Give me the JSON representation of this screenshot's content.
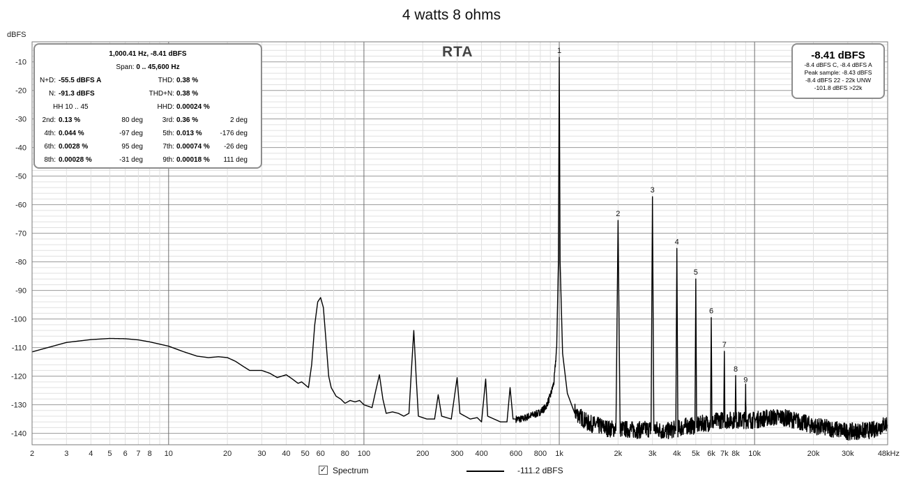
{
  "chart_data": {
    "type": "line",
    "title": "4 watts 8 ohms",
    "ylabel": "dBFS",
    "xlabel": "",
    "x_scale": "log",
    "xlim": [
      2,
      48000
    ],
    "ylim": [
      -144,
      -3
    ],
    "grid": true,
    "y_ticks": [
      -10,
      -20,
      -30,
      -40,
      -50,
      -60,
      -70,
      -80,
      -90,
      -100,
      -110,
      -120,
      -130,
      -140
    ],
    "x_ticks": [
      {
        "v": 2,
        "label": "2"
      },
      {
        "v": 3,
        "label": "3"
      },
      {
        "v": 4,
        "label": "4"
      },
      {
        "v": 5,
        "label": "5"
      },
      {
        "v": 6,
        "label": "6"
      },
      {
        "v": 7,
        "label": "7"
      },
      {
        "v": 8,
        "label": "8"
      },
      {
        "v": 10,
        "label": "10"
      },
      {
        "v": 20,
        "label": "20"
      },
      {
        "v": 30,
        "label": "30"
      },
      {
        "v": 40,
        "label": "40"
      },
      {
        "v": 50,
        "label": "50"
      },
      {
        "v": 60,
        "label": "60"
      },
      {
        "v": 80,
        "label": "80"
      },
      {
        "v": 100,
        "label": "100"
      },
      {
        "v": 200,
        "label": "200"
      },
      {
        "v": 300,
        "label": "300"
      },
      {
        "v": 400,
        "label": "400"
      },
      {
        "v": 600,
        "label": "600"
      },
      {
        "v": 800,
        "label": "800"
      },
      {
        "v": 1000,
        "label": "1k"
      },
      {
        "v": 2000,
        "label": "2k"
      },
      {
        "v": 3000,
        "label": "3k"
      },
      {
        "v": 4000,
        "label": "4k"
      },
      {
        "v": 5000,
        "label": "5k"
      },
      {
        "v": 6000,
        "label": "6k"
      },
      {
        "v": 7000,
        "label": "7k"
      },
      {
        "v": 8000,
        "label": "8k"
      },
      {
        "v": 10000,
        "label": "10k"
      },
      {
        "v": 20000,
        "label": "20k"
      },
      {
        "v": 30000,
        "label": "30k"
      },
      {
        "v": 48000,
        "label": "48kHz"
      }
    ],
    "series": [
      {
        "name": "Spectrum",
        "color": "#000000",
        "points": [
          [
            2,
            -111.5
          ],
          [
            3,
            -108.2
          ],
          [
            4,
            -107.2
          ],
          [
            5,
            -106.8
          ],
          [
            6,
            -106.9
          ],
          [
            7,
            -107.3
          ],
          [
            8,
            -108
          ],
          [
            10,
            -109.5
          ],
          [
            12,
            -111.5
          ],
          [
            14,
            -113
          ],
          [
            16,
            -113.5
          ],
          [
            18,
            -113.2
          ],
          [
            20,
            -113.5
          ],
          [
            22,
            -114.8
          ],
          [
            24,
            -116.5
          ],
          [
            26,
            -118
          ],
          [
            30,
            -118
          ],
          [
            33,
            -119
          ],
          [
            36,
            -120.5
          ],
          [
            40,
            -119.5
          ],
          [
            43,
            -121
          ],
          [
            46,
            -122.5
          ],
          [
            48,
            -122
          ],
          [
            50,
            -123
          ],
          [
            52,
            -124
          ],
          [
            54,
            -116
          ],
          [
            56,
            -102
          ],
          [
            58,
            -94
          ],
          [
            60,
            -92.5
          ],
          [
            62,
            -96
          ],
          [
            64,
            -108
          ],
          [
            66,
            -120
          ],
          [
            68,
            -124
          ],
          [
            72,
            -127
          ],
          [
            76,
            -128
          ],
          [
            80,
            -129.5
          ],
          [
            85,
            -128.5
          ],
          [
            90,
            -129
          ],
          [
            95,
            -128.5
          ],
          [
            100,
            -130
          ],
          [
            110,
            -131
          ],
          [
            115,
            -125
          ],
          [
            120,
            -119.5
          ],
          [
            125,
            -128
          ],
          [
            130,
            -133
          ],
          [
            140,
            -132.5
          ],
          [
            150,
            -133
          ],
          [
            160,
            -134
          ],
          [
            170,
            -133
          ],
          [
            175,
            -118
          ],
          [
            180,
            -104
          ],
          [
            185,
            -120
          ],
          [
            190,
            -134
          ],
          [
            210,
            -135
          ],
          [
            230,
            -135
          ],
          [
            240,
            -126.5
          ],
          [
            250,
            -134
          ],
          [
            280,
            -135
          ],
          [
            300,
            -120.5
          ],
          [
            310,
            -133
          ],
          [
            350,
            -135
          ],
          [
            380,
            -134.5
          ],
          [
            400,
            -136
          ],
          [
            420,
            -121
          ],
          [
            430,
            -134
          ],
          [
            500,
            -136
          ],
          [
            540,
            -136
          ],
          [
            560,
            -124
          ],
          [
            580,
            -135
          ],
          [
            650,
            -135
          ],
          [
            700,
            -134
          ],
          [
            780,
            -133
          ],
          [
            850,
            -131
          ],
          [
            900,
            -127
          ],
          [
            940,
            -122
          ],
          [
            970,
            -110
          ],
          [
            990,
            -80
          ],
          [
            1000,
            -8.41
          ],
          [
            1010,
            -80
          ],
          [
            1040,
            -112
          ],
          [
            1100,
            -126
          ],
          [
            1200,
            -133
          ],
          [
            1400,
            -137
          ],
          [
            1600,
            -138
          ],
          [
            1800,
            -139
          ],
          [
            1950,
            -139
          ],
          [
            2000,
            -65.5
          ],
          [
            2050,
            -139
          ],
          [
            2500,
            -139.5
          ],
          [
            2950,
            -139
          ],
          [
            3000,
            -57.2
          ],
          [
            3050,
            -139
          ],
          [
            3500,
            -140
          ],
          [
            3950,
            -139
          ],
          [
            4000,
            -75.3
          ],
          [
            4050,
            -139
          ],
          [
            4500,
            -138
          ],
          [
            4950,
            -138
          ],
          [
            5000,
            -86
          ],
          [
            5050,
            -138
          ],
          [
            5500,
            -137
          ],
          [
            5950,
            -137
          ],
          [
            6000,
            -99.5
          ],
          [
            6050,
            -137
          ],
          [
            6500,
            -136
          ],
          [
            6950,
            -136
          ],
          [
            7000,
            -111.3
          ],
          [
            7050,
            -136
          ],
          [
            7500,
            -136
          ],
          [
            7950,
            -136
          ],
          [
            8000,
            -119.8
          ],
          [
            8050,
            -136
          ],
          [
            8500,
            -136
          ],
          [
            8950,
            -136
          ],
          [
            9000,
            -123.6
          ],
          [
            9050,
            -136
          ],
          [
            10000,
            -136
          ],
          [
            12000,
            -135
          ],
          [
            14000,
            -135
          ],
          [
            16000,
            -136
          ],
          [
            18000,
            -137
          ],
          [
            20000,
            -138
          ],
          [
            25000,
            -139
          ],
          [
            30000,
            -140
          ],
          [
            40000,
            -139.5
          ],
          [
            48000,
            -137
          ]
        ]
      }
    ],
    "harmonic_markers": [
      {
        "label": "1",
        "x": 1000,
        "y": -8.41
      },
      {
        "label": "2",
        "x": 2000,
        "y": -65.5
      },
      {
        "label": "3",
        "x": 3000,
        "y": -57.2
      },
      {
        "label": "4",
        "x": 4000,
        "y": -75.3
      },
      {
        "label": "5",
        "x": 5000,
        "y": -86
      },
      {
        "label": "6",
        "x": 6000,
        "y": -99.5
      },
      {
        "label": "7",
        "x": 7000,
        "y": -111.3
      },
      {
        "label": "8",
        "x": 8000,
        "y": -119.8
      },
      {
        "label": "9",
        "x": 9000,
        "y": -123.6
      }
    ],
    "legend": {
      "placement": "bottom",
      "checkbox_checked": true,
      "label": "Spectrum",
      "value": "-111.2 dBFS"
    }
  },
  "rta_label": "RTA",
  "stats": {
    "line1": "1,000.41 Hz, -8.41 dBFS",
    "span_label": "Span:",
    "span_value": "0 .. 45,600 Hz",
    "nd_label": "N+D:",
    "nd_value": "-55.5 dBFS A",
    "thd_label": "THD:",
    "thd_value": "0.38 %",
    "n_label": "N:",
    "n_value": "-91.3 dBFS",
    "thdn_label": "THD+N:",
    "thdn_value": "0.38 %",
    "hh_label": "HH 10 .. 45",
    "hhd_label": "HHD:",
    "hhd_value": "0.00024 %",
    "harmonics": [
      {
        "label": "2nd:",
        "value": "0.13 %",
        "phase": "80 deg"
      },
      {
        "label": "3rd:",
        "value": "0.36 %",
        "phase": "2 deg"
      },
      {
        "label": "4th:",
        "value": "0.044 %",
        "phase": "-97 deg"
      },
      {
        "label": "5th:",
        "value": "0.013 %",
        "phase": "-176 deg"
      },
      {
        "label": "6th:",
        "value": "0.0028 %",
        "phase": "95 deg"
      },
      {
        "label": "7th:",
        "value": "0.00074 %",
        "phase": "-26 deg"
      },
      {
        "label": "8th:",
        "value": "0.00028 %",
        "phase": "-31 deg"
      },
      {
        "label": "9th:",
        "value": "0.00018 %",
        "phase": "111 deg"
      }
    ]
  },
  "level": {
    "main": "-8.41 dBFS",
    "lines": [
      "-8.4 dBFS C, -8.4 dBFS A",
      "Peak sample: -8.43 dBFS",
      "-8.4 dBFS 22 - 22k UNW",
      "-101.8 dBFS >22k"
    ]
  },
  "colors": {
    "trace": "#000000",
    "plot_bg": "#ffffff",
    "major_grid": "#9a9a9a",
    "minor_grid": "#e0e0e0",
    "panel_border": "#8c8c8c"
  }
}
